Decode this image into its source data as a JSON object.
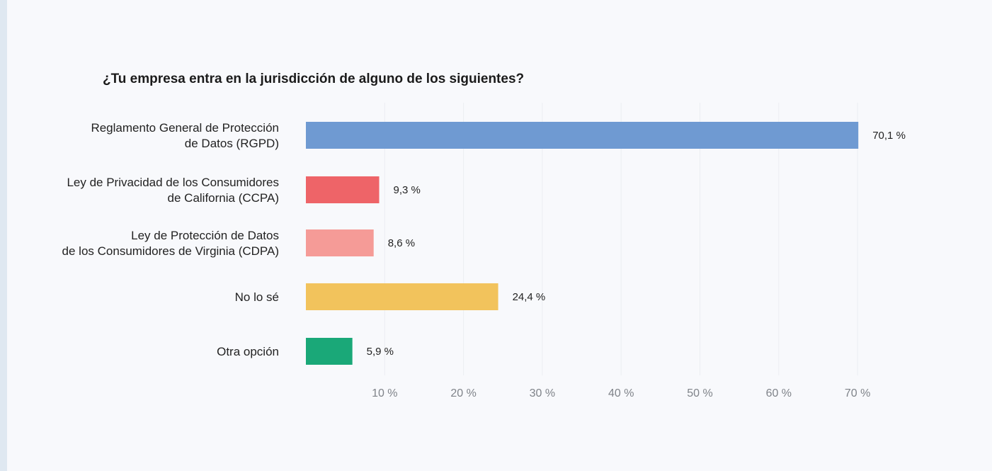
{
  "colors": {
    "background": "#f8f9fc",
    "bar_1": "#6f9ad2",
    "bar_2": "#ee6468",
    "bar_3": "#f59b97",
    "bar_4": "#f2c35c",
    "bar_5": "#1aa878",
    "tick_text": "#7f8389"
  },
  "chart_data": {
    "type": "bar",
    "orientation": "horizontal",
    "title": "¿Tu empresa entra en la jurisdicción de alguno de los siguientes?",
    "categories": [
      [
        "Reglamento General de Protección",
        "de Datos (RGPD)"
      ],
      [
        "Ley de Privacidad de los Consumidores",
        "de California (CCPA)"
      ],
      [
        "Ley de Protección de Datos",
        "de los Consumidores de Virginia (CDPA)"
      ],
      [
        "No lo sé"
      ],
      [
        "Otra opción"
      ]
    ],
    "values": [
      70.1,
      9.3,
      8.6,
      24.4,
      5.9
    ],
    "value_labels": [
      "70,1 %",
      "9,3 %",
      "8,6 %",
      "24,4 %",
      "5,9 %"
    ],
    "xticks": [
      10,
      20,
      30,
      40,
      50,
      60,
      70
    ],
    "xtick_labels": [
      "10 %",
      "20 %",
      "30 %",
      "40 %",
      "50 %",
      "60 %",
      "70 %"
    ],
    "xlim": [
      0,
      70
    ],
    "grid": true,
    "legend": "none"
  }
}
